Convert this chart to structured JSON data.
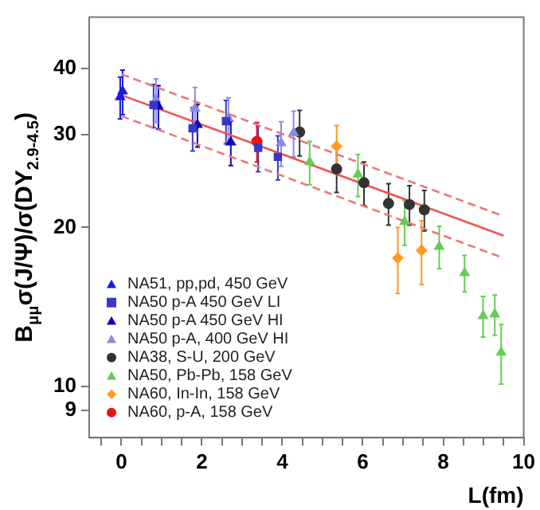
{
  "chart_data": {
    "type": "scatter",
    "xlabel": "L(fm)",
    "ylabel": "B$_{μμ}$σ(J/Ψ)/σ(DY$_{2.9-4.5}$)",
    "log": "y",
    "legend": "bottom left",
    "grid": false,
    "xlim": [
      -0.8,
      10
    ],
    "xticks": [
      {
        "value": -0.5,
        "label": null
      },
      0,
      {
        "value": 0.5,
        "label": null
      },
      {
        "value": 1,
        "label": null
      },
      {
        "value": 1.5,
        "label": null
      },
      2,
      {
        "value": 2.5,
        "label": null
      },
      {
        "value": 3,
        "label": null
      },
      {
        "value": 3.5,
        "label": null
      },
      4,
      {
        "value": 4.5,
        "label": null
      },
      {
        "value": 5,
        "label": null
      },
      {
        "value": 5.5,
        "label": null
      },
      6,
      {
        "value": 6.5,
        "label": null
      },
      {
        "value": 7,
        "label": null
      },
      {
        "value": 7.5,
        "label": null
      },
      8,
      {
        "value": 8.5,
        "label": null
      },
      {
        "value": 9,
        "label": null
      },
      {
        "value": 9.5,
        "label": null
      },
      10
    ],
    "ylim": [
      8,
      50
    ],
    "yticks": [
      9,
      10,
      20,
      30,
      40
    ],
    "series": [
      {
        "name": "NA51, pp,pd, 450 GeV",
        "color": "#1a1adf",
        "marker": "triangle",
        "x": [
          -0.03,
          0.03
        ],
        "values": [
          35.3,
          36.2
        ],
        "errors": [
          3.2,
          3.5
        ]
      },
      {
        "name": "NA50 p-A 450 GeV LI",
        "color": "#3838c8",
        "marker": "square",
        "x": [
          0.8,
          1.77,
          2.6,
          3.4,
          3.89
        ],
        "values": [
          34.1,
          30.8,
          31.8,
          28.3,
          27.2
        ],
        "errors": [
          3.2,
          2.9,
          3,
          2.8,
          2.6
        ]
      },
      {
        "name": "NA50 p-A 450 GeV HI",
        "color": "#0a0ab4",
        "marker": "triangle",
        "x": [
          0.92,
          1.89,
          2.72
        ],
        "values": [
          33.9,
          31.3,
          29.0
        ],
        "errors": [
          3.2,
          2.9,
          2.8
        ]
      },
      {
        "name": "NA50 p-A, 400 GeV HI",
        "color": "#8a8ae6",
        "marker": "triangle",
        "x": [
          0.86,
          1.83,
          2.66,
          3.97,
          4.28
        ],
        "values": [
          34.9,
          33.6,
          32.2,
          28.9,
          30.2
        ],
        "errors": [
          3.3,
          3.2,
          3,
          2.8,
          3
        ]
      },
      {
        "name": "NA38, S-U, 200 GeV",
        "color": "#333333",
        "marker": "circle",
        "x": [
          4.43,
          5.35,
          6.03,
          6.64,
          7.16,
          7.53
        ],
        "values": [
          30.3,
          25.8,
          24.3,
          22.2,
          22.1,
          21.6
        ],
        "errors": [
          3,
          2.5,
          2.3,
          2,
          1.9,
          1.9
        ]
      },
      {
        "name": "NA50, Pb-Pb, 158 GeV",
        "color": "#66cc55",
        "marker": "triangle",
        "x": [
          4.68,
          5.88,
          7.04,
          7.9,
          8.53,
          8.99,
          9.28,
          9.44
        ],
        "values": [
          26.6,
          25.2,
          20.5,
          18.4,
          16.4,
          13.6,
          13.7,
          11.6
        ],
        "errors": [
          2.5,
          2.3,
          2,
          1.7,
          1.3,
          1.2,
          1.2,
          1.5
        ]
      },
      {
        "name": "NA60, In-In, 158 GeV",
        "color": "#ff9922",
        "marker": "diamond",
        "x": [
          5.35,
          6.87,
          7.46
        ],
        "values": [
          28.5,
          17.5,
          18.1
        ],
        "errors": [
          2.7,
          2.5,
          2.5
        ]
      },
      {
        "name": "NA60, p-A, 158 GeV",
        "color": "#ee1111",
        "marker": "circle",
        "x": [
          3.37
        ],
        "values": [
          29.1
        ],
        "errors": [
          2.5
        ]
      },
      {
        "type": "line",
        "color": "#ee5555",
        "line_style": "solid",
        "marker": "none",
        "x": [
          0,
          9.5
        ],
        "values": [
          35.6,
          19.3
        ]
      },
      {
        "type": "line",
        "color": "#ee7777",
        "line_style": "dashed",
        "marker": "none",
        "x": [
          0,
          9.5
        ],
        "values": [
          39.0,
          21.0
        ]
      },
      {
        "type": "line",
        "color": "#ee7777",
        "line_style": "dashed",
        "marker": "none",
        "x": [
          0,
          9.5
        ],
        "values": [
          32.5,
          17.5
        ]
      }
    ]
  }
}
